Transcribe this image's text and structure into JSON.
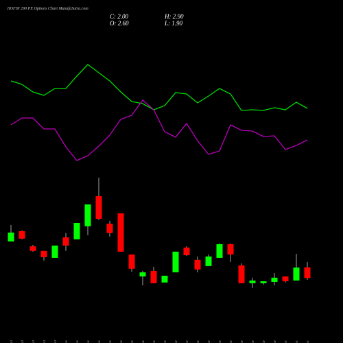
{
  "chart_data": {
    "type": "candlestick",
    "title": "JIOFIN 290 PE Options Chart MunafaSutra.com",
    "ohlc_labels": [
      "C: 2.00",
      "H: 2.90",
      "O: 2.60",
      "L: 1.90"
    ],
    "categories": [
      "27 Oct",
      "28 Oct",
      "29 Oct",
      "30 Oct",
      "31 Oct",
      "03 Nov",
      "04 Nov",
      "05 Nov",
      "06 Nov",
      "07 Nov",
      "08 Nov",
      "11 Nov",
      "12 Nov",
      "13 Nov",
      "14 Nov",
      "18 Nov",
      "19 Nov",
      "20 Nov",
      "21 Nov",
      "22 Nov",
      "25 Nov",
      "26 Nov",
      "27 Nov",
      "28 Nov",
      "29 Nov",
      "02 Dec",
      "03 Dec",
      "04 Dec"
    ],
    "open": [
      4.05,
      4.63,
      3.78,
      3.52,
      3.13,
      4.28,
      4.17,
      4.9,
      6.59,
      5.05,
      5.63,
      3.32,
      2.09,
      2.4,
      1.75,
      2.32,
      3.71,
      3.02,
      2.67,
      3.13,
      3.9,
      2.71,
      1.71,
      1.71,
      1.78,
      2.09,
      1.86,
      2.6
    ],
    "high": [
      4.98,
      4.67,
      3.86,
      3.52,
      3.82,
      4.52,
      5.09,
      6.13,
      7.63,
      5.21,
      5.63,
      3.32,
      2.4,
      2.63,
      2.13,
      3.48,
      3.78,
      3.21,
      3.32,
      3.94,
      3.94,
      2.82,
      2.02,
      1.82,
      2.28,
      2.09,
      3.36,
      2.9
    ],
    "low": [
      4.05,
      4.17,
      3.48,
      2.98,
      3.13,
      3.52,
      4.17,
      4.4,
      5.25,
      4.32,
      3.48,
      2.36,
      1.59,
      1.71,
      1.75,
      2.32,
      3.25,
      2.32,
      2.67,
      3.13,
      2.9,
      1.71,
      1.44,
      1.63,
      1.59,
      1.75,
      1.86,
      1.9
    ],
    "close": [
      4.55,
      4.21,
      3.52,
      3.17,
      3.82,
      3.82,
      5.09,
      6.13,
      5.32,
      4.52,
      3.48,
      2.52,
      2.32,
      1.71,
      2.13,
      3.48,
      3.28,
      2.48,
      3.21,
      3.9,
      3.32,
      1.71,
      1.86,
      1.82,
      2.02,
      1.82,
      2.59,
      2.0
    ],
    "up_color": "#00ff00",
    "down_color": "#ff0000",
    "ylim": [
      1.05,
      8.36
    ],
    "y2lim": [
      0,
      100
    ],
    "lines": [
      {
        "color": "#00dd00",
        "axis": "y2",
        "values": [
          72.8,
          70.8,
          66.4,
          64.4,
          68.4,
          68.4,
          75.6,
          82.4,
          77.6,
          72.8,
          66.4,
          60.8,
          59.6,
          56,
          58.4,
          66,
          65.2,
          60,
          64,
          68.4,
          65.2,
          55.6,
          56,
          55.6,
          57.2,
          56,
          60.4,
          56.8
        ]
      },
      {
        "color": "#bb00bb",
        "axis": "y2",
        "values": [
          47.2,
          51.2,
          51.2,
          44.8,
          44.8,
          34.4,
          26.4,
          29.2,
          34.8,
          41.2,
          50.4,
          52.8,
          61.6,
          56,
          43.2,
          40,
          48,
          38,
          30,
          32,
          47.2,
          44,
          43.6,
          40.4,
          40.8,
          32.8,
          35.2,
          38.4
        ]
      }
    ]
  }
}
